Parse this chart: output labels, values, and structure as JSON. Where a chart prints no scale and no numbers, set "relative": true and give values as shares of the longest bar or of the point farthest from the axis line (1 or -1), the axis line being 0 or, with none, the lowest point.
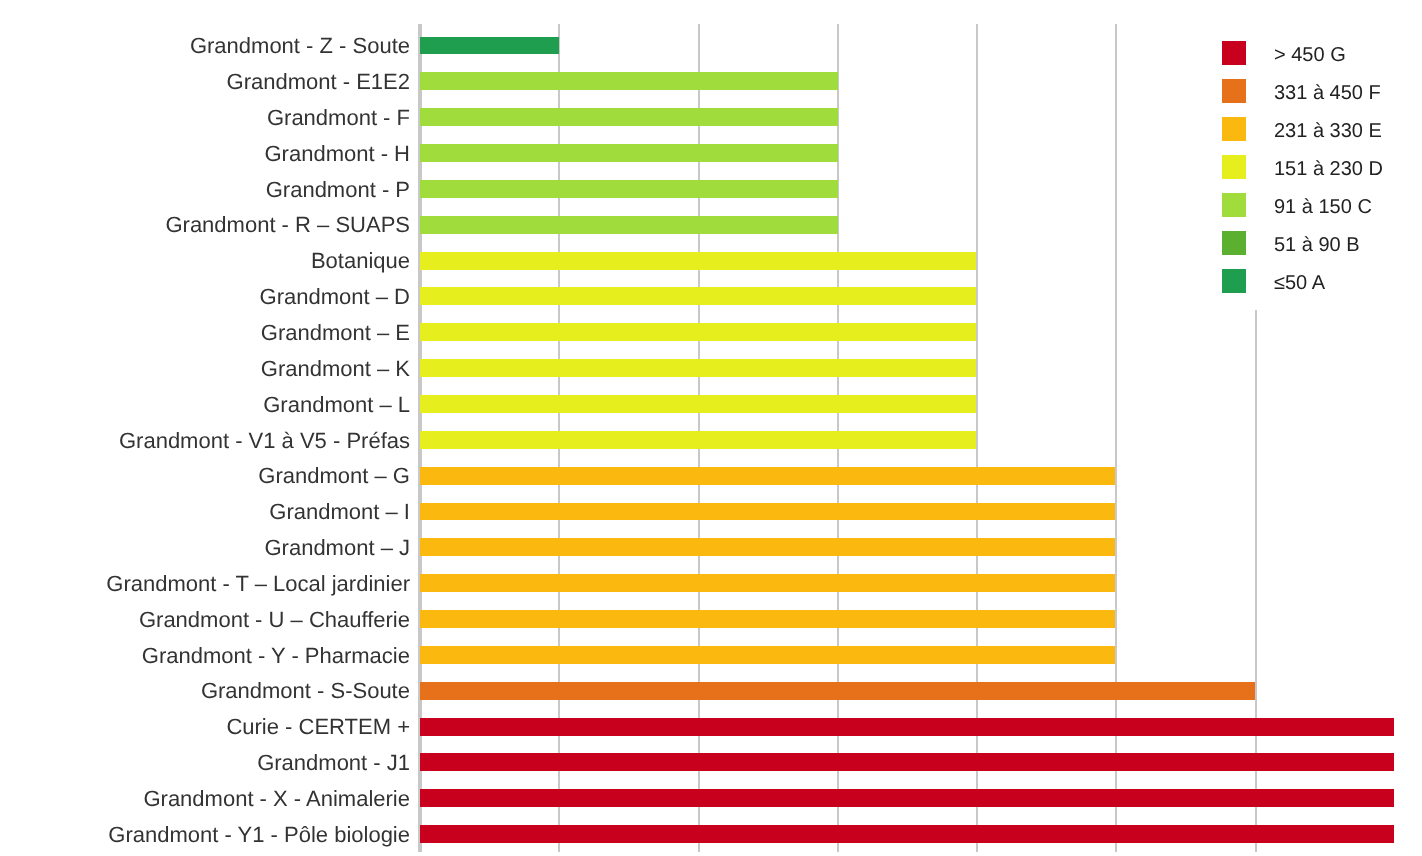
{
  "chart_data": {
    "type": "bar",
    "orientation": "horizontal",
    "relative": true,
    "stacked": true,
    "grid": "x",
    "legend": "top right",
    "categories": [
      "Grandmont - Z - Soute",
      "Grandmont - E1E2",
      "Grandmont - F",
      "Grandmont - H",
      "Grandmont - P",
      "Grandmont - R – SUAPS",
      "Botanique",
      "Grandmont – D",
      "Grandmont – E",
      "Grandmont – K",
      "Grandmont – L",
      "Grandmont - V1 à V5 - Préfas",
      "Grandmont – G",
      "Grandmont – I",
      "Grandmont – J",
      "Grandmont - T – Local jardinier",
      "Grandmont - U – Chaufferie",
      "Grandmont - Y - Pharmacie",
      "Grandmont - S-Soute",
      "Curie - CERTEM +",
      "Grandmont - J1",
      "Grandmont - X - Animalerie",
      "Grandmont - Y1 - Pôle biologie"
    ],
    "series": [
      {
        "name": "≤50 A",
        "color": "#1e9e4e",
        "values": [
          0.143,
          null,
          null,
          null,
          null,
          null,
          null,
          null,
          null,
          null,
          null,
          null,
          null,
          null,
          null,
          null,
          null,
          null,
          null,
          null,
          null,
          null,
          null
        ]
      },
      {
        "name": "51 à 90 B",
        "color": "#5bb030",
        "values": [
          null,
          null,
          null,
          null,
          null,
          null,
          null,
          null,
          null,
          null,
          null,
          null,
          null,
          null,
          null,
          null,
          null,
          null,
          null,
          null,
          null,
          null,
          null
        ]
      },
      {
        "name": "91 à 150 C",
        "color": "#9fdc3c",
        "values": [
          null,
          0.429,
          0.429,
          0.429,
          0.429,
          0.429,
          null,
          null,
          null,
          null,
          null,
          null,
          null,
          null,
          null,
          null,
          null,
          null,
          null,
          null,
          null,
          null,
          null
        ]
      },
      {
        "name": "151 à 230 D",
        "color": "#e6ee1e",
        "values": [
          null,
          null,
          null,
          null,
          null,
          null,
          0.571,
          0.571,
          0.571,
          0.571,
          0.571,
          0.571,
          null,
          null,
          null,
          null,
          null,
          null,
          null,
          null,
          null,
          null,
          null
        ]
      },
      {
        "name": "231 à 330 E",
        "color": "#fbb80f",
        "values": [
          null,
          null,
          null,
          null,
          null,
          null,
          null,
          null,
          null,
          null,
          null,
          null,
          0.714,
          0.714,
          0.714,
          0.714,
          0.714,
          0.714,
          null,
          null,
          null,
          null,
          null
        ]
      },
      {
        "name": "331 à 450 F",
        "color": "#e7711b",
        "values": [
          null,
          null,
          null,
          null,
          null,
          null,
          null,
          null,
          null,
          null,
          null,
          null,
          null,
          null,
          null,
          null,
          null,
          null,
          0.857,
          null,
          null,
          null,
          null
        ]
      },
      {
        "name": "> 450 G",
        "color": "#c8001e",
        "values": [
          null,
          null,
          null,
          null,
          null,
          null,
          null,
          null,
          null,
          null,
          null,
          null,
          null,
          null,
          null,
          null,
          null,
          null,
          null,
          1,
          1,
          1,
          1
        ]
      }
    ]
  }
}
